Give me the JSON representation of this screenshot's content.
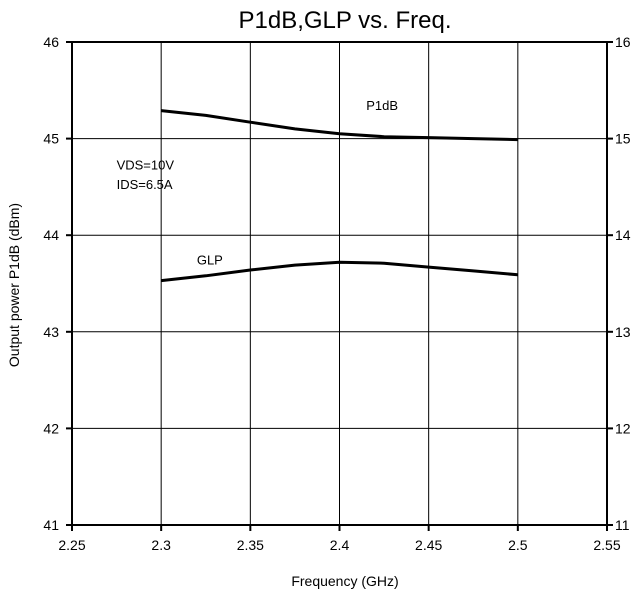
{
  "chart_data": {
    "type": "line",
    "title": "P1dB,GLP vs. Freq.",
    "xlabel": "Frequency (GHz)",
    "ylabel": "Output power P1dB (dBm)",
    "xlim": [
      2.25,
      2.55
    ],
    "ylim": [
      41,
      46
    ],
    "y2lim": [
      11,
      16
    ],
    "grid": true,
    "x_ticks": [
      "2.25",
      "2.3",
      "2.35",
      "2.4",
      "2.45",
      "2.5",
      "2.55"
    ],
    "y_ticks": [
      "41",
      "42",
      "43",
      "44",
      "45",
      "46"
    ],
    "y2_ticks": [
      "11",
      "12",
      "13",
      "14",
      "15",
      "16"
    ],
    "series": [
      {
        "name": "P1dB",
        "axis": "left",
        "x": [
          2.3,
          2.325,
          2.35,
          2.375,
          2.4,
          2.425,
          2.45,
          2.475,
          2.5
        ],
        "y": [
          45.29,
          45.24,
          45.17,
          45.1,
          45.05,
          45.02,
          45.01,
          45.0,
          44.99
        ]
      },
      {
        "name": "GLP",
        "axis": "right",
        "x": [
          2.3,
          2.325,
          2.35,
          2.375,
          2.4,
          2.425,
          2.45,
          2.475,
          2.5
        ],
        "y": [
          13.53,
          13.58,
          13.64,
          13.69,
          13.72,
          13.71,
          13.67,
          13.63,
          13.59
        ]
      }
    ],
    "annotations": [
      {
        "text": "VDS=10V",
        "x": 2.275,
        "y": 44.73
      },
      {
        "text": "IDS=6.5A",
        "x": 2.275,
        "y": 44.53
      }
    ]
  }
}
